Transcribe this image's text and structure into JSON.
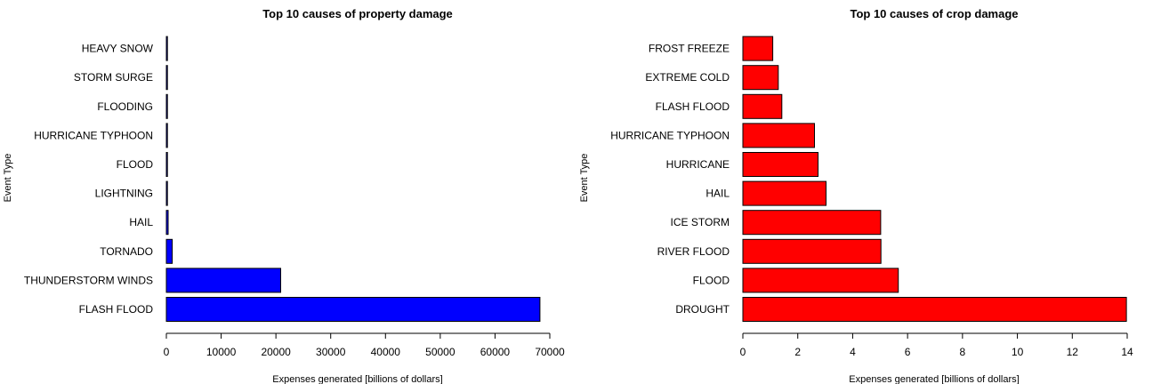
{
  "colors": {
    "bar_left": "#0000ff",
    "bar_right": "#ff0000",
    "edge": "#000000"
  },
  "chart_data": [
    {
      "type": "bar",
      "orientation": "horizontal",
      "title": "Top 10 causes of property damage",
      "xlabel": "Expenses generated [billions of dollars]",
      "ylabel": "Event Type",
      "categories": [
        "FLASH FLOOD",
        "THUNDERSTORM WINDS",
        "TORNADO",
        "HAIL",
        "LIGHTNING",
        "FLOOD",
        "HURRICANE TYPHOON",
        "FLOODING",
        "STORM SURGE",
        "HEAVY SNOW"
      ],
      "values": [
        68200,
        20870,
        1080,
        320,
        110,
        100,
        70,
        40,
        30,
        20
      ],
      "xlim": [
        0,
        70000
      ],
      "xticks": [
        "0",
        "10000",
        "20000",
        "30000",
        "40000",
        "50000",
        "60000",
        "70000"
      ],
      "grid": false
    },
    {
      "type": "bar",
      "orientation": "horizontal",
      "title": "Top 10 causes of crop damage",
      "xlabel": "Expenses generated [billions of dollars]",
      "ylabel": "Event Type",
      "categories": [
        "DROUGHT",
        "FLOOD",
        "RIVER FLOOD",
        "ICE STORM",
        "HAIL",
        "HURRICANE",
        "HURRICANE TYPHOON",
        "FLASH FLOOD",
        "EXTREME COLD",
        "FROST FREEZE"
      ],
      "values": [
        13.97,
        5.66,
        5.03,
        5.02,
        3.03,
        2.74,
        2.61,
        1.42,
        1.29,
        1.09
      ],
      "xlim": [
        0,
        14
      ],
      "xticks": [
        "0",
        "2",
        "4",
        "6",
        "8",
        "10",
        "12",
        "14"
      ],
      "grid": false
    }
  ]
}
